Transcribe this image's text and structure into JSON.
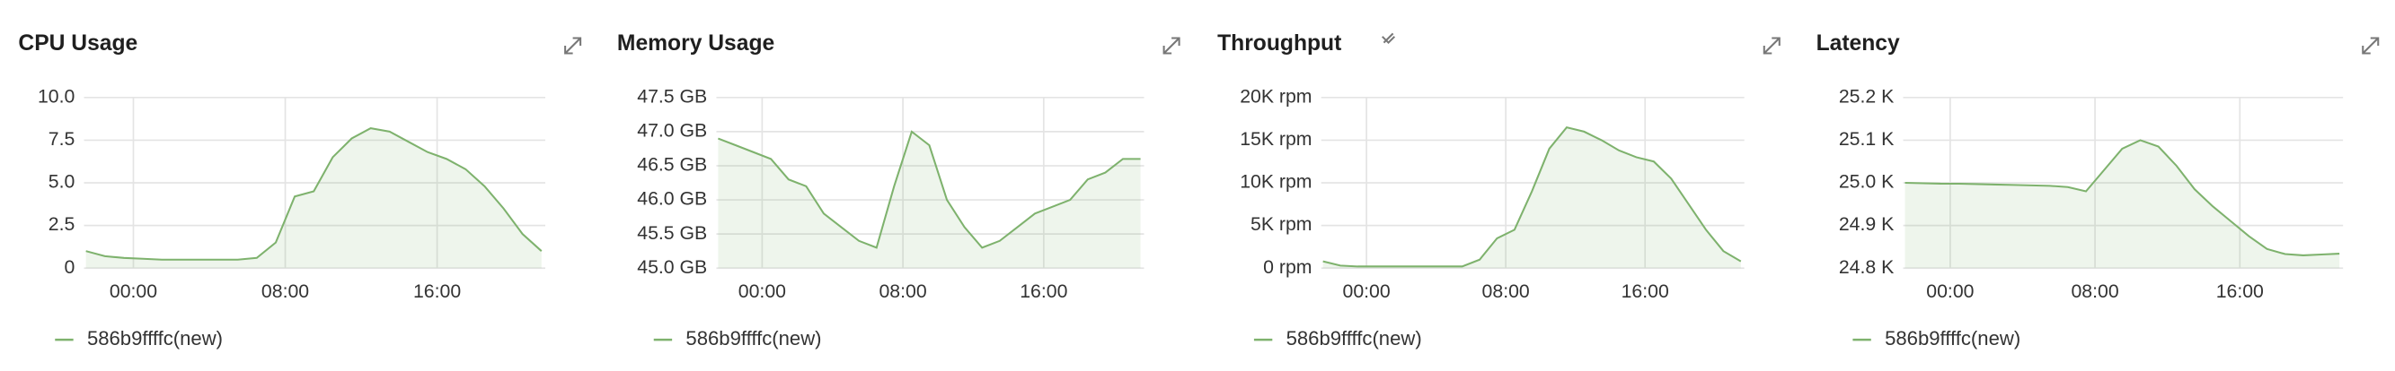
{
  "chart_data": [
    {
      "type": "area",
      "title": "CPU Usage",
      "x": [
        -2.5,
        -1.5,
        -0.5,
        0.5,
        1.5,
        2.5,
        3.5,
        4.5,
        5.5,
        6.5,
        7.5,
        8.5,
        9.5,
        10.5,
        11.5,
        12.5,
        13.5,
        14.5,
        15.5,
        16.5,
        17.5,
        18.5,
        19.5,
        20.5,
        21.5
      ],
      "series": [
        {
          "name": "586b9ffffc(new)",
          "color": "#7eb26d",
          "values": [
            1.0,
            0.7,
            0.6,
            0.55,
            0.5,
            0.5,
            0.5,
            0.5,
            0.5,
            0.6,
            1.5,
            4.2,
            4.5,
            6.5,
            7.6,
            8.2,
            8.0,
            7.4,
            6.8,
            6.4,
            5.8,
            4.8,
            3.5,
            2.0,
            1.0
          ]
        }
      ],
      "xlim": [
        -2.6,
        21.7
      ],
      "xticks": [
        {
          "value": 0,
          "label": "00:00"
        },
        {
          "value": 8,
          "label": "08:00"
        },
        {
          "value": 16,
          "label": "16:00"
        }
      ],
      "ylim": [
        0,
        10
      ],
      "yticks": [
        0,
        {
          "value": 2.5,
          "label": "2.5"
        },
        {
          "value": 5,
          "label": "5.0"
        },
        {
          "value": 7.5,
          "label": "7.5"
        },
        {
          "value": 10,
          "label": "10.0"
        }
      ],
      "grid": true
    },
    {
      "type": "area",
      "title": "Memory Usage",
      "x": [
        -2.5,
        -1.5,
        -0.5,
        0.5,
        1.5,
        2.5,
        3.5,
        4.5,
        5.5,
        6.5,
        7.5,
        8.5,
        9.5,
        10.5,
        11.5,
        12.5,
        13.5,
        14.5,
        15.5,
        16.5,
        17.5,
        18.5,
        19.5,
        20.5,
        21.5
      ],
      "series": [
        {
          "name": "586b9ffffc(new)",
          "color": "#7eb26d",
          "values": [
            46.9,
            46.8,
            46.7,
            46.6,
            46.3,
            46.2,
            45.8,
            45.6,
            45.4,
            45.3,
            46.2,
            47.0,
            46.8,
            46.0,
            45.6,
            45.3,
            45.4,
            45.6,
            45.8,
            45.9,
            46.0,
            46.3,
            46.4,
            46.6,
            46.6
          ]
        }
      ],
      "xlim": [
        -2.6,
        21.7
      ],
      "xticks": [
        {
          "value": 0,
          "label": "00:00"
        },
        {
          "value": 8,
          "label": "08:00"
        },
        {
          "value": 16,
          "label": "16:00"
        }
      ],
      "ylim": [
        45,
        47.5
      ],
      "yticks": [
        {
          "value": 45,
          "label": "45.0 GB"
        },
        {
          "value": 45.5,
          "label": "45.5 GB"
        },
        {
          "value": 46,
          "label": "46.0 GB"
        },
        {
          "value": 46.5,
          "label": "46.5 GB"
        },
        {
          "value": 47,
          "label": "47.0 GB"
        },
        {
          "value": 47.5,
          "label": "47.5 GB"
        }
      ],
      "grid": true
    },
    {
      "type": "area",
      "title": "Throughput",
      "x": [
        -2.5,
        -1.5,
        -0.5,
        0.5,
        1.5,
        2.5,
        3.5,
        4.5,
        5.5,
        6.5,
        7.5,
        8.5,
        9.5,
        10.5,
        11.5,
        12.5,
        13.5,
        14.5,
        15.5,
        16.5,
        17.5,
        18.5,
        19.5,
        20.5,
        21.5
      ],
      "series": [
        {
          "name": "586b9ffffc(new)",
          "color": "#7eb26d",
          "values": [
            800,
            300,
            200,
            200,
            200,
            200,
            200,
            200,
            200,
            1000,
            3500,
            4500,
            9000,
            14000,
            16500,
            16000,
            15000,
            13800,
            13000,
            12500,
            10500,
            7500,
            4500,
            2000,
            800
          ]
        }
      ],
      "xlim": [
        -2.6,
        21.7
      ],
      "xticks": [
        {
          "value": 0,
          "label": "00:00"
        },
        {
          "value": 8,
          "label": "08:00"
        },
        {
          "value": 16,
          "label": "16:00"
        }
      ],
      "ylim": [
        0,
        20000
      ],
      "yticks": [
        {
          "value": 0,
          "label": "0 rpm"
        },
        {
          "value": 5000,
          "label": "5K rpm"
        },
        {
          "value": 10000,
          "label": "10K rpm"
        },
        {
          "value": 15000,
          "label": "15K rpm"
        },
        {
          "value": 20000,
          "label": "20K rpm"
        }
      ],
      "grid": true
    },
    {
      "type": "area",
      "title": "Latency",
      "x": [
        -2.5,
        -1.5,
        -0.5,
        0.5,
        1.5,
        2.5,
        3.5,
        4.5,
        5.5,
        6.5,
        7.5,
        8.5,
        9.5,
        10.5,
        11.5,
        12.5,
        13.5,
        14.5,
        15.5,
        16.5,
        17.5,
        18.5,
        19.5,
        20.5,
        21.5
      ],
      "series": [
        {
          "name": "586b9ffffc(new)",
          "color": "#7eb26d",
          "values": [
            25000,
            24999,
            24998,
            24998,
            24997,
            24996,
            24995,
            24994,
            24993,
            24990,
            24980,
            25030,
            25080,
            25100,
            25085,
            25040,
            24985,
            24945,
            24910,
            24875,
            24845,
            24833,
            24830,
            24832,
            24834
          ]
        }
      ],
      "xlim": [
        -2.6,
        21.7
      ],
      "xticks": [
        {
          "value": 0,
          "label": "00:00"
        },
        {
          "value": 8,
          "label": "08:00"
        },
        {
          "value": 16,
          "label": "16:00"
        }
      ],
      "ylim": [
        24800,
        25200
      ],
      "yticks": [
        {
          "value": 24800,
          "label": "24.8 K"
        },
        {
          "value": 24900,
          "label": "24.9 K"
        },
        {
          "value": 25000,
          "label": "25.0 K"
        },
        {
          "value": 25100,
          "label": "25.1 K"
        },
        {
          "value": 25200,
          "label": "25.2 K"
        }
      ],
      "grid": true
    }
  ]
}
